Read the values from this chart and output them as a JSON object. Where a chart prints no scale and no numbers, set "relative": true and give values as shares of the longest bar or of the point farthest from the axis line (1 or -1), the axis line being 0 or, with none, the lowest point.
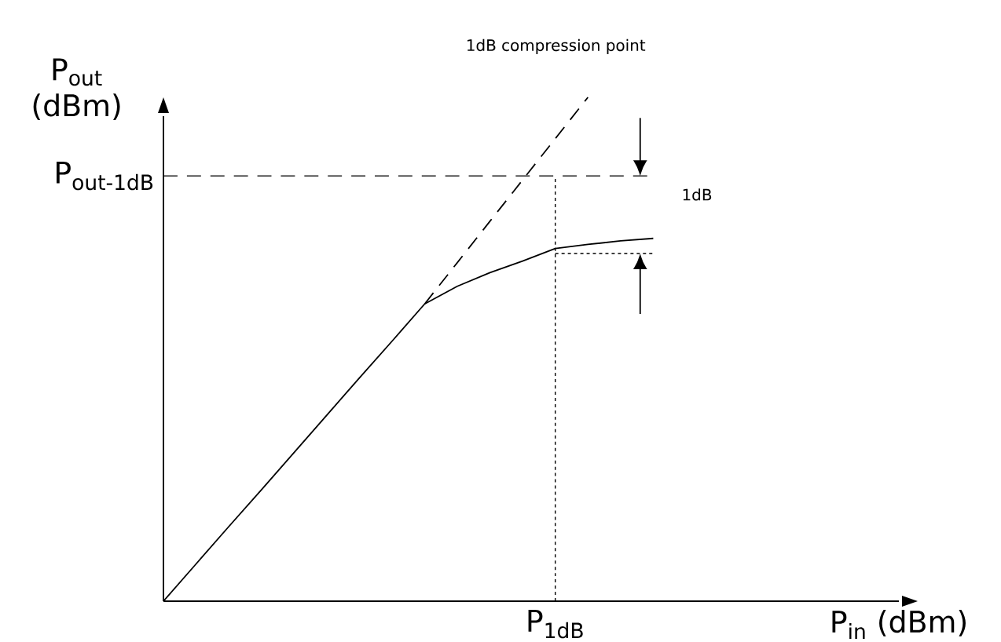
{
  "chart_data": {
    "type": "line",
    "relative": true,
    "title": "1dB compression point",
    "ylabel": "P$_{out}$ (dBm)",
    "annotations": [
      "1dB",
      "P$_{in}$ (dBm)",
      "P$_{1dB}$"
    ],
    "marker": "none",
    "categories": [
      null,
      null,
      null,
      null,
      null,
      null,
      null,
      null,
      null,
      null,
      null,
      null,
      null,
      null,
      null,
      null
    ],
    "series": [
      {
        "color": "#000000",
        "line_style": "solid",
        "values": [
          0,
          0.074,
          0.148,
          0.221,
          0.295,
          0.369,
          0.443,
          0.516,
          0.59,
          0.625,
          0.652,
          0.675,
          0.7,
          0.708,
          0.715,
          0.72
        ]
      },
      {
        "color": "#000000",
        "line_style": "dashed",
        "values": [
          null,
          null,
          null,
          null,
          null,
          null,
          null,
          null,
          0.59,
          0.672,
          0.754,
          0.836,
          0.918,
          1.0,
          null,
          null
        ]
      }
    ],
    "ref_lines": [
      {
        "axis": "y",
        "value": 0.844,
        "label": "P$_{out-1dB}$",
        "line_style": "dashed"
      },
      {
        "axis": "y",
        "value": 0.69,
        "line_style": "dotted"
      }
    ]
  }
}
